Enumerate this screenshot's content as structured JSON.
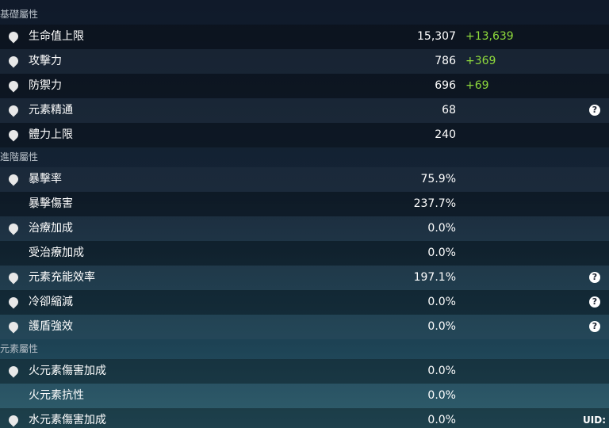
{
  "sections": [
    {
      "title": "基礎屬性",
      "rows": [
        {
          "label": "生命值上限",
          "value": "15,307",
          "bonus": "+13,639",
          "icon": true,
          "help": false
        },
        {
          "label": "攻擊力",
          "value": "786",
          "bonus": "+369",
          "icon": true,
          "help": false
        },
        {
          "label": "防禦力",
          "value": "696",
          "bonus": "+69",
          "icon": true,
          "help": false
        },
        {
          "label": "元素精通",
          "value": "68",
          "icon": true,
          "help": true
        },
        {
          "label": "體力上限",
          "value": "240",
          "icon": true,
          "help": false
        }
      ]
    },
    {
      "title": "進階屬性",
      "rows": [
        {
          "label": "暴擊率",
          "value": "75.9%",
          "icon": true,
          "help": false
        },
        {
          "label": "暴擊傷害",
          "value": "237.7%",
          "icon": false,
          "help": false
        },
        {
          "label": "治療加成",
          "value": "0.0%",
          "icon": true,
          "help": false
        },
        {
          "label": "受治療加成",
          "value": "0.0%",
          "icon": false,
          "help": false
        },
        {
          "label": "元素充能效率",
          "value": "197.1%",
          "icon": true,
          "help": true
        },
        {
          "label": "冷卻縮減",
          "value": "0.0%",
          "icon": true,
          "help": true
        },
        {
          "label": "護盾強效",
          "value": "0.0%",
          "icon": true,
          "help": true
        }
      ]
    },
    {
      "title": "元素屬性",
      "rows": [
        {
          "label": "火元素傷害加成",
          "value": "0.0%",
          "icon": true,
          "help": false
        },
        {
          "label": "火元素抗性",
          "value": "0.0%",
          "icon": false,
          "help": false
        },
        {
          "label": "水元素傷害加成",
          "value": "0.0%",
          "icon": true,
          "help": false
        }
      ]
    }
  ],
  "footer": {
    "uid": "UID:"
  }
}
